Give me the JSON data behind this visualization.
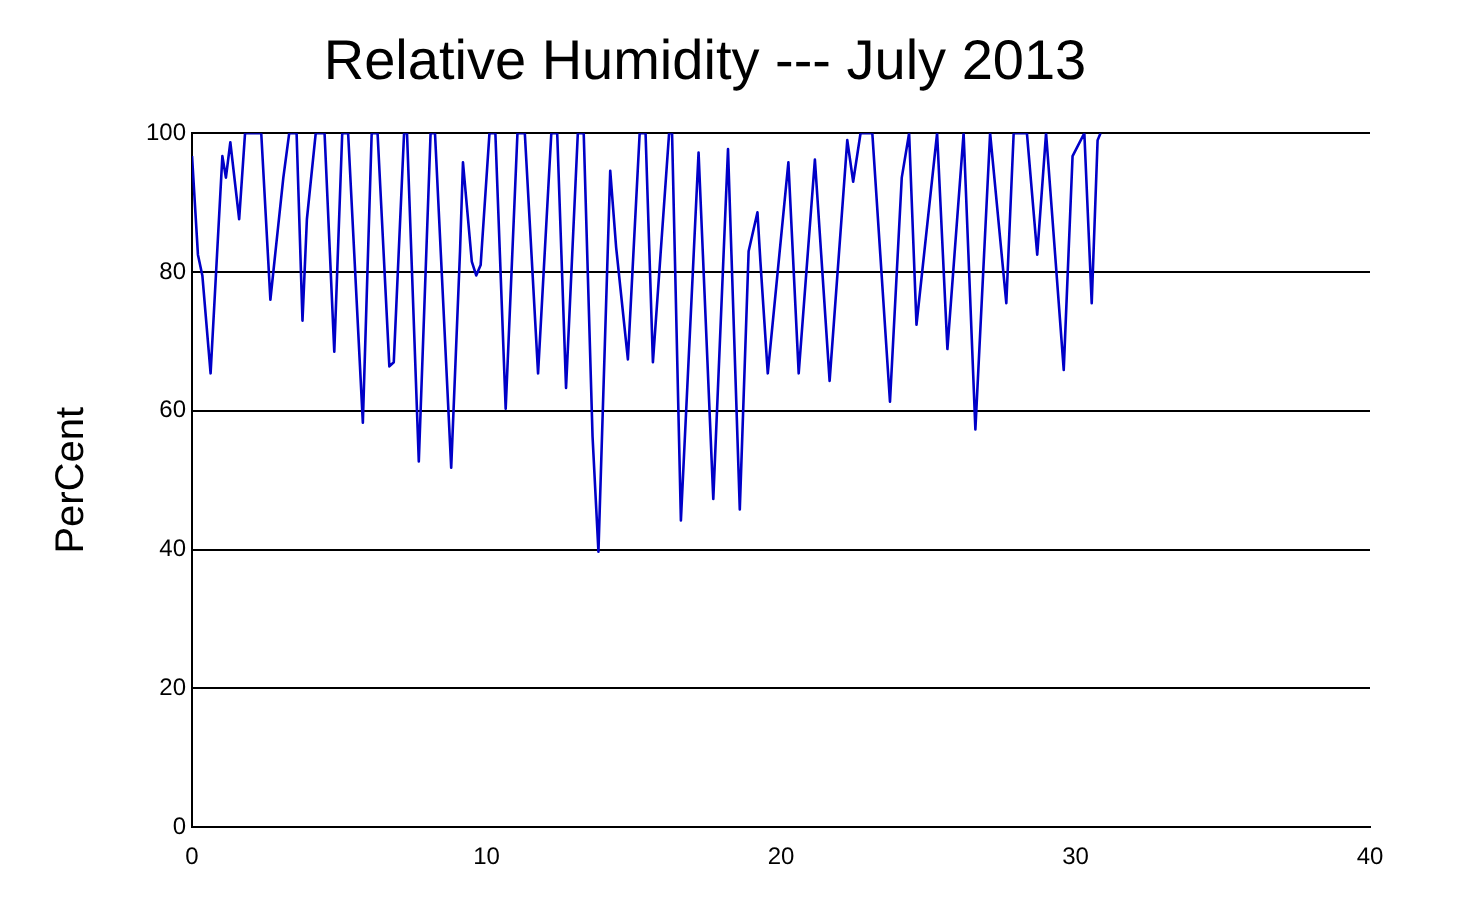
{
  "chart_data": {
    "type": "line",
    "title": "Relative Humidity --- July 2013",
    "ylabel": "PerCent",
    "xlim": [
      0,
      40
    ],
    "xticks": [
      0,
      10,
      20,
      30,
      40
    ],
    "ylim": [
      0,
      100
    ],
    "yticks": [
      0,
      20,
      40,
      60,
      80,
      100
    ],
    "grid": "y",
    "legend": false,
    "marker": "none",
    "line_style": "solid",
    "series": [
      {
        "color": "#0000c8",
        "x": [
          0,
          0.2,
          0.35,
          0.63,
          1.03,
          1.15,
          1.3,
          1.6,
          1.8,
          2.35,
          2.66,
          3.1,
          3.3,
          3.55,
          3.75,
          3.9,
          4.2,
          4.5,
          4.83,
          5.1,
          5.3,
          5.8,
          6.1,
          6.3,
          6.7,
          6.85,
          7.2,
          7.3,
          7.7,
          8.1,
          8.25,
          8.8,
          9.1,
          9.2,
          9.5,
          9.65,
          9.8,
          10.1,
          10.3,
          10.65,
          11.05,
          11.3,
          11.75,
          12.2,
          12.4,
          12.7,
          13.1,
          13.3,
          13.6,
          13.8,
          14.2,
          14.4,
          14.8,
          15.2,
          15.4,
          15.65,
          16.2,
          16.3,
          16.6,
          17.2,
          17.7,
          18.2,
          18.6,
          18.9,
          19.2,
          19.3,
          19.55,
          20.25,
          20.6,
          21.15,
          21.65,
          22.25,
          22.45,
          22.7,
          23.1,
          23.7,
          24.1,
          24.35,
          24.6,
          25.3,
          25.65,
          26.2,
          26.6,
          27.1,
          27.65,
          27.9,
          28.35,
          28.7,
          29.0,
          29.6,
          29.9,
          30.3,
          30.55,
          30.75,
          30.85
        ],
        "values": [
          96.7,
          82.5,
          79.5,
          65.4,
          96.7,
          93.6,
          98.7,
          87.6,
          100,
          100,
          76,
          93.6,
          100,
          100,
          73,
          87.6,
          100,
          100,
          68.5,
          100,
          100,
          58.3,
          100,
          100,
          66.4,
          67,
          100,
          100,
          52.7,
          100,
          100,
          51.8,
          83,
          95.8,
          81.5,
          79.5,
          81,
          100,
          100,
          60.3,
          100,
          100,
          65.4,
          100,
          100,
          63.3,
          100,
          100,
          56.3,
          39.7,
          94.6,
          83.6,
          67.4,
          100,
          100,
          67,
          100,
          100,
          44.2,
          97.2,
          47.3,
          97.7,
          45.8,
          83,
          88.6,
          81.5,
          65.4,
          95.8,
          65.4,
          96.2,
          64.3,
          99,
          93,
          100,
          100,
          61.3,
          93.6,
          100,
          72.4,
          100,
          68.9,
          100,
          57.3,
          100,
          75.5,
          100,
          100,
          82.5,
          100,
          65.9,
          96.7,
          100,
          75.5,
          99,
          100
        ]
      }
    ]
  }
}
